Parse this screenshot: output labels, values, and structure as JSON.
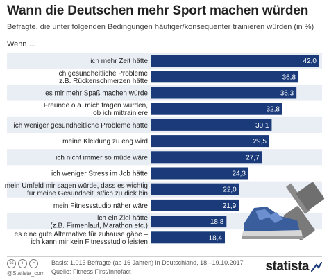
{
  "header": {
    "title": "Wann die Deutschen mehr Sport machen würden",
    "subtitle": "Befragte, die unter folgenden Bedingungen häufiger/konsequenter trainieren würden (in %)",
    "lead": "Wenn ..."
  },
  "chart_data": {
    "type": "bar",
    "orientation": "horizontal",
    "categories": [
      [
        "ich mehr Zeit hätte"
      ],
      [
        "ich gesundheitliche Probleme",
        "z.B. Rückenschmerzen hätte"
      ],
      [
        "es mir mehr Spaß machen würde"
      ],
      [
        "Freunde o.ä. mich fragen würden,",
        "ob ich mittrainiere"
      ],
      [
        "ich weniger gesundheitliche Probleme hätte"
      ],
      [
        "meine Kleidung zu eng wird"
      ],
      [
        "ich nicht immer so müde wäre"
      ],
      [
        "ich weniger Stress im Job hätte"
      ],
      [
        "mein Umfeld mir sagen würde, dass es wichtig",
        "für meine Gesundheit ist/ich zu dick bin"
      ],
      [
        "mein Fitnessstudio näher wäre"
      ],
      [
        "ich ein Ziel hätte",
        "(z.B. Firmenlauf, Marathon etc.)"
      ],
      [
        "es eine gute Alternative für zuhause gäbe –",
        "ich kann mir kein Fitnessstudio leisten"
      ]
    ],
    "values": [
      42.0,
      36.8,
      36.3,
      32.8,
      30.1,
      29.5,
      27.7,
      24.3,
      22.0,
      21.9,
      18.8,
      18.4
    ],
    "value_labels": [
      "42,0",
      "36,8",
      "36,3",
      "32,8",
      "30,1",
      "29,5",
      "27,7",
      "24,3",
      "22,0",
      "21,9",
      "18,8",
      "18,4"
    ],
    "xlim": [
      0,
      42
    ],
    "bar_color": "#1a3a7a",
    "row_band_color": "#e9edf4",
    "value_label_color": "#ffffff",
    "grid": false,
    "legend": "none"
  },
  "footer": {
    "icons": [
      "cc",
      "i",
      "="
    ],
    "handle": "@Statista_com",
    "source_line1": "Basis: 1.013 Befragte (ab 16 Jahren) in Deutschland, 18.–19.10.2017",
    "source_line2": "Quelle: Fitness First/Innofact",
    "brand": "statista"
  }
}
